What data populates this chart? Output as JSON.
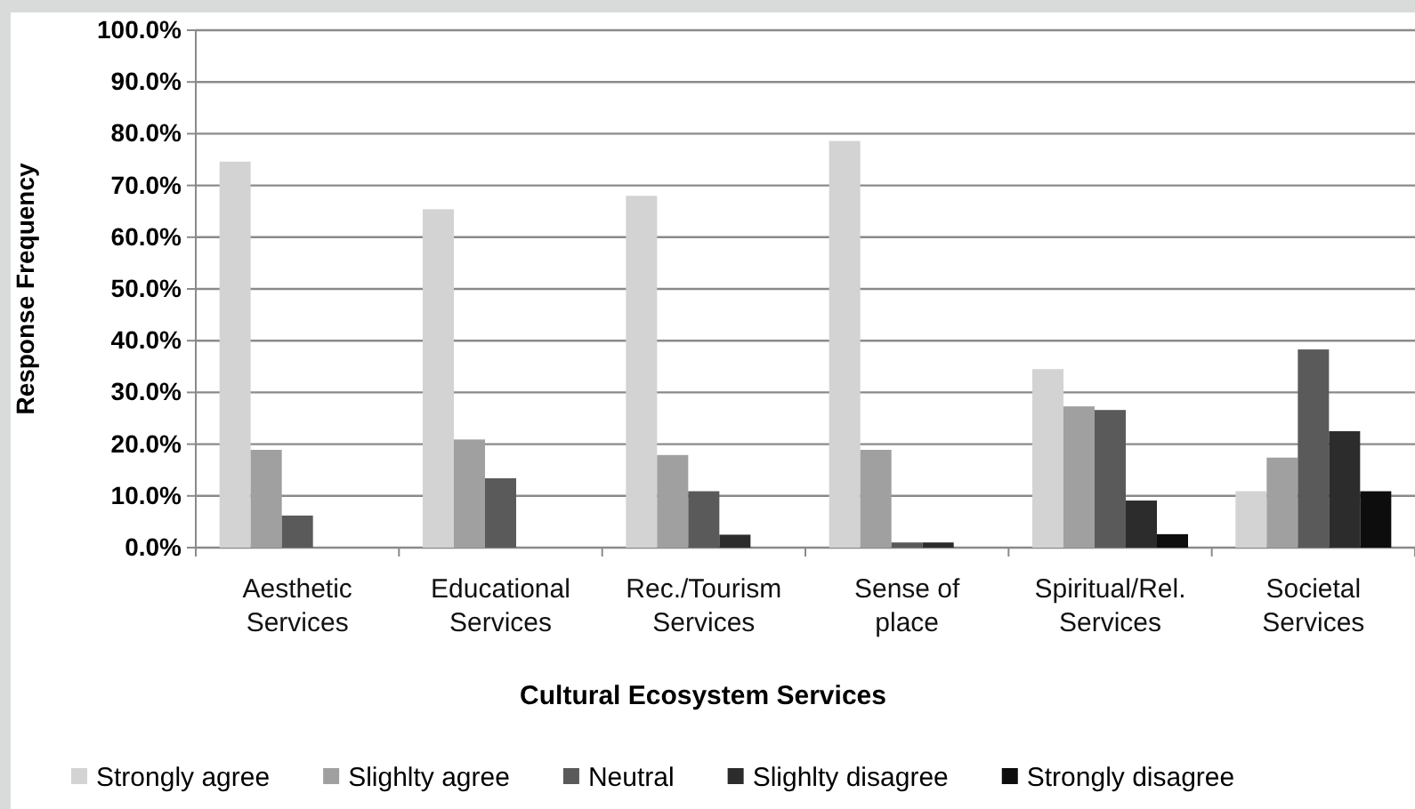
{
  "chart_data": {
    "type": "bar",
    "xlabel": "Cultural Ecosystem Services",
    "ylabel": "Response Frequency",
    "categories": [
      "Aesthetic Services",
      "Educational Services",
      "Rec./Tourism Services",
      "Sense of place",
      "Spiritual/Rel. Services",
      "Societal Services"
    ],
    "series": [
      {
        "name": "Strongly agree",
        "color": "#d3d3d3",
        "values": [
          74.6,
          65.4,
          68.0,
          78.6,
          34.5,
          10.9
        ]
      },
      {
        "name": "Slighlty agree",
        "color": "#a0a0a0",
        "values": [
          18.9,
          20.9,
          17.9,
          18.9,
          27.3,
          17.4
        ]
      },
      {
        "name": "Neutral",
        "color": "#5a5a5a",
        "values": [
          6.2,
          13.4,
          10.9,
          1.0,
          26.6,
          38.3
        ]
      },
      {
        "name": "Slighlty disagree",
        "color": "#2c2c2c",
        "values": [
          0,
          0,
          2.5,
          1.0,
          9.1,
          22.5
        ]
      },
      {
        "name": "Strongly disagree",
        "color": "#0d0d0d",
        "values": [
          0,
          0,
          0,
          0,
          2.6,
          10.9
        ]
      }
    ],
    "ylim": [
      0,
      100
    ],
    "yticks": [
      {
        "value": 0,
        "label": "0.0%"
      },
      {
        "value": 10,
        "label": "10.0%"
      },
      {
        "value": 20,
        "label": "20.0%"
      },
      {
        "value": 30,
        "label": "30.0%"
      },
      {
        "value": 40,
        "label": "40.0%"
      },
      {
        "value": 50,
        "label": "50.0%"
      },
      {
        "value": 60,
        "label": "60.0%"
      },
      {
        "value": 70,
        "label": "70.0%"
      },
      {
        "value": 80,
        "label": "80.0%"
      },
      {
        "value": 90,
        "label": "90.0%"
      },
      {
        "value": 100,
        "label": "100.0%"
      }
    ],
    "grid": "y",
    "legend": "bottom"
  }
}
